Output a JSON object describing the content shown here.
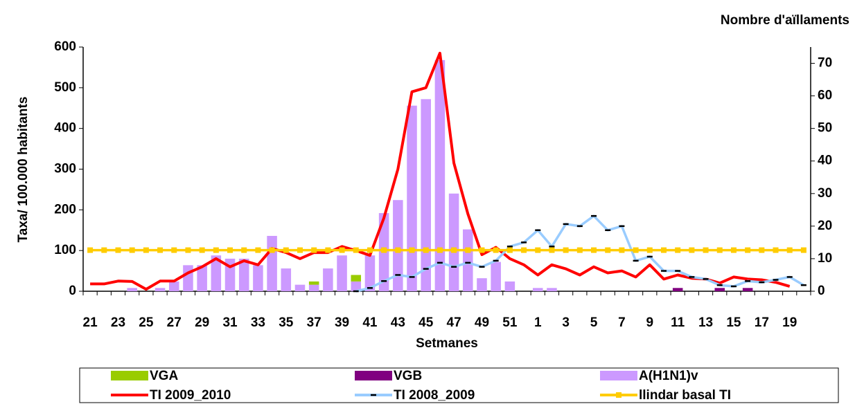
{
  "chart_data": {
    "type": "bar",
    "x_label": "Setmanes",
    "y_label": "Taxa/ 100.000 habitants",
    "y2_label": "Nombre d'aïllaments",
    "categories": [
      "21",
      null,
      "23",
      null,
      "25",
      null,
      "27",
      null,
      "29",
      null,
      "31",
      null,
      "33",
      null,
      "35",
      null,
      "37",
      null,
      "39",
      null,
      "41",
      null,
      "43",
      null,
      "45",
      null,
      "47",
      null,
      "49",
      null,
      "51",
      null,
      "1",
      null,
      "3",
      null,
      "5",
      null,
      "7",
      null,
      "9",
      null,
      "11",
      null,
      "13",
      null,
      "15",
      null,
      "17",
      null,
      "19",
      null
    ],
    "ylim": [
      0,
      600
    ],
    "yticks": [
      0,
      100,
      200,
      300,
      400,
      500,
      600
    ],
    "y2lim": [
      0,
      75
    ],
    "y2ticks": [
      0,
      10,
      20,
      30,
      40,
      50,
      60,
      70
    ],
    "series": [
      {
        "name": "A(H1N1)v",
        "type": "bar",
        "axis": "y2",
        "color": "#cc99ff",
        "values": [
          0,
          0,
          0,
          1,
          0,
          1,
          3,
          8,
          8,
          11,
          10,
          10,
          8,
          17,
          7,
          2,
          2,
          7,
          11,
          3,
          11,
          24,
          28,
          57,
          59,
          71,
          30,
          19,
          4,
          9,
          3,
          0,
          1,
          1,
          0,
          0,
          0,
          0,
          0,
          0,
          0,
          0,
          0,
          0,
          0,
          0,
          0,
          0,
          0,
          0,
          0,
          0
        ]
      },
      {
        "name": "VGA",
        "type": "bar",
        "axis": "y2",
        "color": "#99cc00",
        "values": [
          0,
          0,
          0,
          0,
          0,
          0,
          0,
          0,
          0,
          0,
          0,
          0,
          0,
          0,
          0,
          0,
          1,
          0,
          0,
          2,
          0,
          0,
          0,
          0,
          0,
          0,
          0,
          0,
          0,
          0,
          0,
          0,
          0,
          0,
          0,
          0,
          0,
          0,
          0,
          0,
          0,
          0,
          0,
          0,
          0,
          0,
          0,
          0,
          0,
          0,
          0,
          0
        ]
      },
      {
        "name": "VGB",
        "type": "bar",
        "axis": "y2",
        "color": "#800080",
        "values": [
          0,
          0,
          0,
          0,
          0,
          0,
          0,
          0,
          0,
          0,
          0,
          0,
          0,
          0,
          0,
          0,
          0,
          0,
          0,
          0,
          0,
          0,
          0,
          0,
          0,
          0,
          0,
          0,
          0,
          0,
          0,
          0,
          0,
          0,
          0,
          0,
          0,
          0,
          0,
          0,
          0,
          0,
          1,
          0,
          0,
          1,
          0,
          1,
          0,
          0,
          0,
          0
        ]
      },
      {
        "name": "TI 2009_2010",
        "type": "line",
        "color": "#ff0000",
        "values": [
          18,
          18,
          25,
          24,
          5,
          25,
          25,
          45,
          60,
          80,
          60,
          75,
          65,
          105,
          95,
          80,
          95,
          95,
          110,
          100,
          88,
          180,
          300,
          490,
          500,
          585,
          315,
          190,
          90,
          108,
          80,
          65,
          40,
          65,
          55,
          40,
          60,
          45,
          50,
          35,
          65,
          30,
          40,
          32,
          30,
          20,
          35,
          30,
          28,
          22,
          12,
          null
        ]
      },
      {
        "name": "TI 2008_2009",
        "type": "line",
        "marker": "dash",
        "color": "#99ccff",
        "values": [
          null,
          null,
          null,
          null,
          null,
          null,
          null,
          null,
          null,
          null,
          null,
          null,
          null,
          null,
          null,
          null,
          null,
          null,
          null,
          0,
          8,
          25,
          40,
          35,
          55,
          70,
          60,
          70,
          60,
          75,
          110,
          120,
          150,
          110,
          165,
          160,
          185,
          150,
          160,
          75,
          85,
          50,
          50,
          35,
          30,
          15,
          12,
          25,
          22,
          28,
          35,
          15
        ]
      },
      {
        "name": "llindar basal TI",
        "type": "line",
        "marker": "square",
        "color": "#ffcc00",
        "values": [
          101,
          101,
          101,
          101,
          101,
          101,
          101,
          101,
          101,
          101,
          101,
          101,
          101,
          101,
          101,
          101,
          101,
          101,
          101,
          101,
          101,
          101,
          101,
          101,
          101,
          101,
          101,
          101,
          101,
          101,
          101,
          101,
          101,
          101,
          101,
          101,
          101,
          101,
          101,
          101,
          101,
          101,
          101,
          101,
          101,
          101,
          101,
          101,
          101,
          101,
          101,
          101
        ]
      }
    ],
    "legend_order": [
      1,
      2,
      0,
      3,
      4,
      5
    ]
  }
}
